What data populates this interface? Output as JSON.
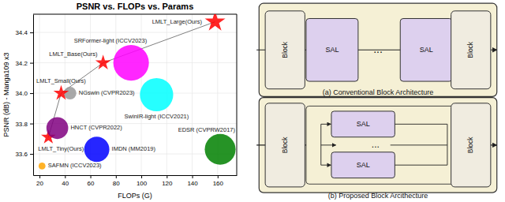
{
  "chart_data": [
    {
      "type": "scatter",
      "title": "PSNR vs. FLOPs vs. Params",
      "xlabel": "FLOPs (G)",
      "ylabel": "PSNR (dB) - Manga109 x3",
      "xlim": [
        15,
        175
      ],
      "ylim": [
        33.46,
        34.52
      ],
      "xticks": [
        20,
        40,
        60,
        80,
        100,
        120,
        140,
        160
      ],
      "yticks": [
        33.6,
        33.8,
        {
          "value": 34.0,
          "label": "34.0"
        },
        34.2,
        34.4
      ],
      "grid": true,
      "series": [
        {
          "type": "line",
          "color": "gray",
          "x": [
            27,
            37,
            70,
            158
          ],
          "values": [
            33.71,
            34.0,
            34.2,
            34.47
          ]
        },
        {
          "name": "SAFMN (ICCV2023)",
          "type": "scatter",
          "color": "orange",
          "marker": "circle",
          "x": [
            22
          ],
          "values": [
            33.52
          ],
          "size": [
            60
          ]
        },
        {
          "name": "LMLT_Tiny(Ours)",
          "type": "scatter",
          "color": "red",
          "marker": "star",
          "x": [
            27
          ],
          "values": [
            33.71
          ],
          "size": [
            180
          ]
        },
        {
          "name": "HNCT (CVPR2022)",
          "type": "scatter",
          "color": "purple",
          "marker": "circle",
          "x": [
            34
          ],
          "values": [
            33.77
          ],
          "size": [
            600
          ]
        },
        {
          "name": "IMDN (MM2019)",
          "type": "scatter",
          "color": "blue",
          "marker": "circle",
          "x": [
            65
          ],
          "values": [
            33.63
          ],
          "size": [
            800
          ]
        },
        {
          "name": "NGswin (CVPR2023)",
          "type": "scatter",
          "color": "#999999",
          "marker": "circle",
          "x": [
            44
          ],
          "values": [
            34.0
          ],
          "size": [
            200
          ]
        },
        {
          "name": "LMLT_Small(Ours)",
          "type": "scatter",
          "color": "red",
          "marker": "star",
          "x": [
            37
          ],
          "values": [
            34.0
          ],
          "size": [
            200
          ]
        },
        {
          "name": "LMLT_Base(Ours)",
          "type": "scatter",
          "color": "red",
          "marker": "star",
          "x": [
            70
          ],
          "values": [
            34.2
          ],
          "size": [
            200
          ]
        },
        {
          "name": "SRFormer-light (ICCV2023)",
          "type": "scatter",
          "color": "magenta",
          "marker": "circle",
          "x": [
            92
          ],
          "values": [
            34.2
          ],
          "size": [
            1600
          ]
        },
        {
          "name": "SwinIR-light (ICCV2021)",
          "type": "scatter",
          "color": "cyan",
          "marker": "circle",
          "x": [
            112
          ],
          "values": [
            33.99
          ],
          "size": [
            1400
          ]
        },
        {
          "name": "EDSR (CVPRW2017)",
          "type": "scatter",
          "color": "green",
          "marker": "circle",
          "x": [
            162
          ],
          "values": [
            33.63
          ],
          "size": [
            1200
          ]
        },
        {
          "name": "LMLT_Large(Ours)",
          "type": "scatter",
          "color": "red",
          "marker": "star",
          "x": [
            158
          ],
          "values": [
            34.47
          ],
          "size": [
            350
          ]
        }
      ]
    },
    {
      "type": "diagram",
      "colors": [
        "#f5f0d5",
        "#ddd0ee",
        "#f0ece0"
      ],
      "annotations": [
        "Block",
        "SAL",
        "...",
        "SAL",
        "Block",
        "(a) Conventional Block Architecture",
        "Block",
        "SAL",
        "...",
        "SAL",
        "Block",
        "(b) Proposed Block Arcithecture"
      ]
    }
  ]
}
